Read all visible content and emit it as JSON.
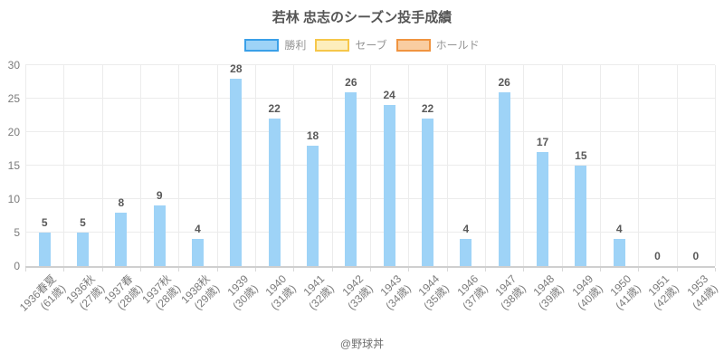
{
  "title": "若林 忠志のシーズン投手成績",
  "footer": "@野球丼",
  "colors": {
    "bar_fill": "#9ed3f7",
    "legend_blue_fill": "#a9d5f5",
    "legend_blue_border": "#3aa0e8",
    "legend_yellow_fill": "#fdeebc",
    "legend_yellow_border": "#f6c74a",
    "legend_orange_fill": "#f9cda1",
    "legend_orange_border": "#f09440",
    "gridline": "#ececec",
    "axis_line": "#cfcfcf",
    "title_text": "#555555",
    "value_label_text": "#595959",
    "tick_label_text": "#7b7b7b",
    "legend_text": "#949494",
    "footer_text": "#707070"
  },
  "legend": [
    {
      "id": "wins",
      "label": "勝利",
      "fill": "#9ed3f7",
      "border": "#3aa0e8"
    },
    {
      "id": "saves",
      "label": "セーブ",
      "fill": "#fdeebc",
      "border": "#f6c74a"
    },
    {
      "id": "holds",
      "label": "ホールド",
      "fill": "#f9cda1",
      "border": "#f09440"
    }
  ],
  "chart_data": {
    "type": "bar",
    "title": "若林 忠志のシーズン投手成績",
    "categories": [
      "1936春夏",
      "1936秋",
      "1937春",
      "1937秋",
      "1938秋",
      "1939",
      "1940",
      "1941",
      "1942",
      "1943",
      "1944",
      "1946",
      "1947",
      "1948",
      "1949",
      "1950",
      "1951",
      "1953"
    ],
    "category_ages": [
      "(61歳)",
      "(27歳)",
      "(28歳)",
      "(28歳)",
      "(29歳)",
      "(30歳)",
      "(31歳)",
      "(32歳)",
      "(33歳)",
      "(34歳)",
      "(35歳)",
      "(37歳)",
      "(38歳)",
      "(39歳)",
      "(40歳)",
      "(41歳)",
      "(42歳)",
      "(44歳)"
    ],
    "series": [
      {
        "name": "勝利",
        "values": [
          5,
          5,
          8,
          9,
          4,
          28,
          22,
          18,
          26,
          24,
          22,
          4,
          26,
          17,
          15,
          4,
          0,
          0
        ]
      }
    ],
    "legend_entries": [
      "勝利",
      "セーブ",
      "ホールド"
    ],
    "legend_position": "top",
    "data_labels_shown": true,
    "xlabel": "",
    "ylabel": "",
    "ylim": [
      0,
      30
    ],
    "yticks": [
      0,
      5,
      10,
      15,
      20,
      25,
      30
    ],
    "grid": true
  }
}
